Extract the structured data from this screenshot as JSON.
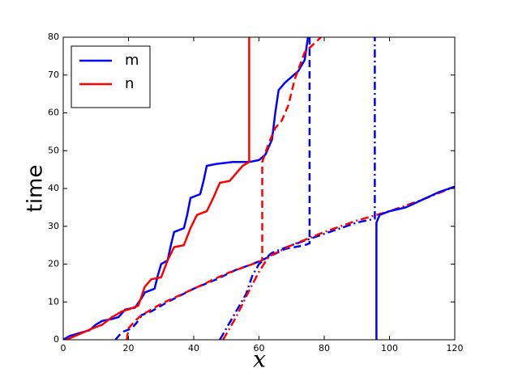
{
  "chart_data": {
    "type": "line",
    "xlabel": "x",
    "ylabel": "time",
    "xlim": [
      0,
      120
    ],
    "ylim": [
      0,
      80
    ],
    "xticks": [
      0,
      20,
      40,
      60,
      80,
      100,
      120
    ],
    "yticks": [
      0,
      10,
      20,
      30,
      40,
      50,
      60,
      70,
      80
    ],
    "legend": "upper left",
    "series": [
      {
        "name": "m",
        "color": "#0000ff",
        "style": "solid",
        "x": [
          0,
          2,
          6,
          8,
          10,
          12,
          15,
          17,
          19,
          22,
          24,
          25,
          28,
          29,
          30,
          32,
          33,
          34,
          37,
          38,
          39,
          42,
          43,
          44,
          47,
          52,
          57,
          60,
          62,
          64,
          65,
          66,
          68,
          72,
          74,
          75
        ],
        "values": [
          0,
          1,
          2,
          2.5,
          4,
          5,
          5.5,
          6,
          8,
          8.5,
          11,
          12.5,
          13.5,
          17,
          20,
          21,
          25,
          28.5,
          29.5,
          33,
          37.5,
          38.5,
          42,
          46,
          46.5,
          47,
          47,
          47.5,
          49,
          53,
          60,
          66,
          68,
          71,
          74,
          80
        ]
      },
      {
        "name": "n",
        "color": "#ff0000",
        "style": "solid",
        "x": [
          1,
          5,
          9,
          12,
          15,
          18,
          20,
          23,
          25,
          27,
          30,
          32,
          34,
          37,
          39,
          41,
          44,
          46,
          48,
          51,
          53,
          55,
          57,
          57
        ],
        "values": [
          0,
          1.5,
          3,
          4,
          6,
          7.5,
          8,
          9,
          14,
          16,
          16.5,
          21,
          24.5,
          25,
          29.5,
          33,
          34,
          37.5,
          41.5,
          42,
          44,
          46,
          47,
          80
        ]
      },
      {
        "color": "#0000ff",
        "style": "dashed",
        "x": [
          16,
          18,
          21,
          23,
          24,
          27,
          32,
          40,
          47,
          53,
          58,
          62,
          68,
          74,
          75.5,
          75.5
        ],
        "values": [
          0,
          2,
          3,
          5,
          6.5,
          7.5,
          10,
          13.5,
          16,
          18.5,
          20,
          21.5,
          24,
          25,
          25.5,
          80
        ]
      },
      {
        "color": "#ff0000",
        "style": "dashed",
        "x": [
          19.5,
          20,
          22,
          24,
          30,
          40,
          50,
          58,
          61,
          61,
          63,
          65,
          67,
          69,
          71,
          74,
          79
        ],
        "values": [
          0,
          3,
          5,
          6.5,
          9.5,
          13.5,
          17.5,
          20,
          21,
          47,
          52,
          56,
          58,
          62,
          69,
          76,
          80
        ]
      },
      {
        "color": "#0000ff",
        "style": "dashdot",
        "x": [
          48,
          52,
          56,
          58,
          60,
          64,
          70,
          80,
          90,
          95.5,
          95.5
        ],
        "values": [
          0,
          6,
          12,
          17,
          20,
          23,
          25,
          28,
          31,
          32,
          80
        ]
      },
      {
        "color": "#ff0000",
        "style": "dashdot",
        "x": [
          49,
          53,
          57,
          60,
          63,
          70,
          80,
          90,
          96,
          100,
          110,
          120
        ],
        "values": [
          0,
          6,
          13,
          18,
          22,
          25,
          28.5,
          31.5,
          33,
          34,
          37,
          40.5
        ]
      },
      {
        "color": "#0000ff",
        "style": "solid",
        "x": [
          96,
          96,
          97,
          100,
          105,
          110,
          115,
          120
        ],
        "values": [
          0,
          31,
          33,
          34,
          35,
          37,
          39,
          40.5
        ]
      }
    ]
  }
}
